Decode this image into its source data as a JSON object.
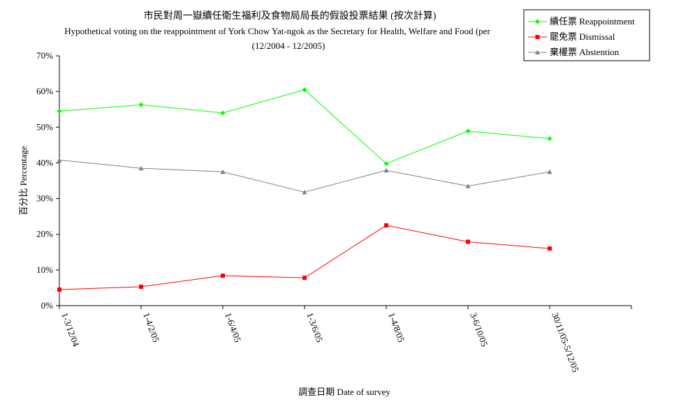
{
  "chart_data": {
    "type": "line",
    "title": "市民對周一嶽續任衛生福利及食物局局長的假設投票結果 (按次計算)",
    "subtitle": "Hypothetical voting on the reappointment of York Chow Yat-ngok as the Secretary for Health, Welfare and Food (per",
    "subtitle2": "(12/2004 - 12/2005)",
    "xlabel": "調查日期 Date of survey",
    "ylabel": "百分比 Percentage",
    "categories": [
      "1-3/12/04",
      "1-4/2/05",
      "1-6/4/05",
      "1-3/6/05",
      "1-4/8/05",
      "3-6/10/05",
      "30/11/05-5/12/05"
    ],
    "ylim": [
      0,
      70
    ],
    "yticks": [
      "0%",
      "10%",
      "20%",
      "30%",
      "40%",
      "50%",
      "60%",
      "70%"
    ],
    "grid": false,
    "legend_position": "top-right",
    "series": [
      {
        "name": "續任票 Reappointment",
        "color": "#00ff00",
        "marker": "diamond",
        "values": [
          54.5,
          56.3,
          54.0,
          60.5,
          39.8,
          48.9,
          46.8
        ]
      },
      {
        "name": "罷免票 Dismissal",
        "color": "#ff0000",
        "marker": "square",
        "values": [
          4.5,
          5.3,
          8.4,
          7.8,
          22.5,
          17.9,
          16.0
        ]
      },
      {
        "name": "棄權票 Abstention",
        "color": "#808080",
        "marker": "triangle",
        "values": [
          40.8,
          38.5,
          37.5,
          31.8,
          37.9,
          33.5,
          37.5
        ]
      }
    ]
  }
}
